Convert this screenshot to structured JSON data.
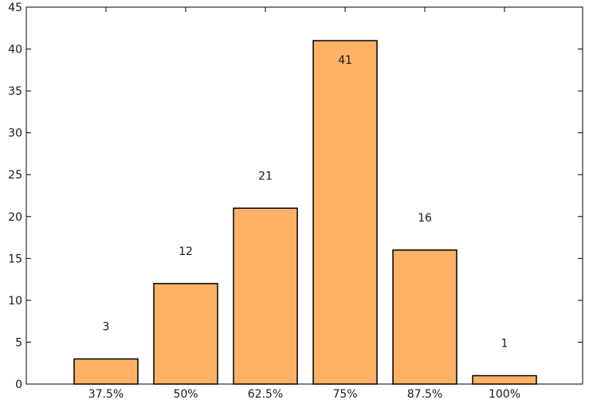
{
  "chart_data": {
    "type": "bar",
    "title": "",
    "xlabel": "",
    "ylabel": "",
    "categories": [
      "37.5%",
      "50%",
      "62.5%",
      "75%",
      "87.5%",
      "100%"
    ],
    "values": [
      3,
      12,
      21,
      41,
      16,
      1
    ],
    "data_labels": [
      "3",
      "12",
      "21",
      "41",
      "16",
      "1"
    ],
    "ylim": [
      0,
      45
    ],
    "yticks": [
      0,
      5,
      10,
      15,
      20,
      25,
      30,
      35,
      40,
      45
    ],
    "grid": false,
    "legend": "none",
    "colors": {
      "bar_fill": "#ffb266",
      "bar_stroke": "#000000",
      "axis": "#000000"
    }
  }
}
